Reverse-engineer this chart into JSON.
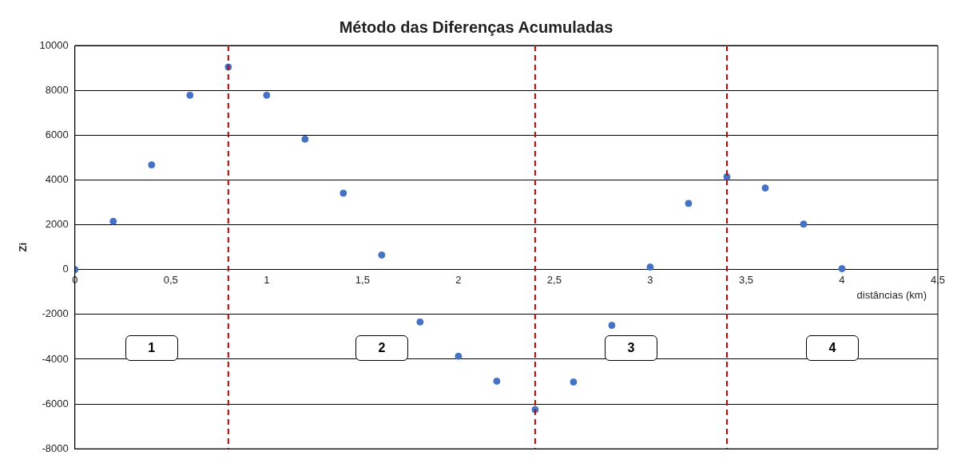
{
  "chart_data": {
    "type": "scatter",
    "title": "Método das Diferenças Acumuladas",
    "xlabel": "distâncias (km)",
    "ylabel": "Zi",
    "x": [
      0,
      0.2,
      0.4,
      0.6,
      0.8,
      1,
      1.2,
      1.4,
      1.6,
      1.8,
      2,
      2.2,
      2.4,
      2.6,
      2.8,
      3,
      3.2,
      3.4,
      3.6,
      3.8,
      4
    ],
    "series": [
      {
        "color": "#4472c4",
        "values": [
          0,
          2150,
          4670,
          7780,
          9040,
          7780,
          5820,
          3410,
          650,
          -2340,
          -3870,
          -4980,
          -6250,
          -5020,
          -2490,
          110,
          2950,
          4140,
          3640,
          2030,
          40
        ]
      }
    ],
    "xlim": [
      0,
      4.5
    ],
    "xticks": [
      0,
      {
        "value": 0.5,
        "label": "0,5"
      },
      1,
      {
        "value": 1.5,
        "label": "1,5"
      },
      2,
      {
        "value": 2.5,
        "label": "2,5"
      },
      3,
      {
        "value": 3.5,
        "label": "3,5"
      },
      4,
      {
        "value": 4.5,
        "label": "4,5"
      }
    ],
    "ylim": [
      -8000,
      10000
    ],
    "yticks": [
      -8000,
      -6000,
      -4000,
      -2000,
      0,
      2000,
      4000,
      6000,
      8000,
      10000
    ],
    "grid": "y",
    "legend": false,
    "marker": "circle",
    "ref_lines": [
      {
        "axis": "x",
        "value": 0.8,
        "color": "#c00000",
        "line_style": "dashed"
      },
      {
        "axis": "x",
        "value": 2.4,
        "color": "#c00000",
        "line_style": "dashed"
      },
      {
        "axis": "x",
        "value": 3.4,
        "color": "#c00000",
        "line_style": "dashed"
      }
    ],
    "annotations": [
      "1",
      "2",
      "3",
      "4"
    ]
  }
}
